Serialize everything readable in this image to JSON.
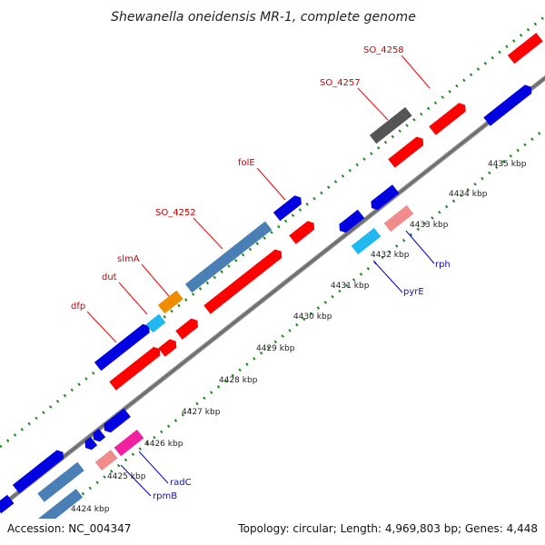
{
  "title": "Shewanella oneidensis MR-1, complete genome",
  "footer": {
    "accession": "Accession: NC_004347",
    "summary": "Topology: circular; Length: 4,969,803 bp; Genes: 4,448"
  },
  "ticks": [
    {
      "label": "4424 kbp"
    },
    {
      "label": "4425 kbp"
    },
    {
      "label": "4426 kbp"
    },
    {
      "label": "4427 kbp"
    },
    {
      "label": "4428 kbp"
    },
    {
      "label": "4429 kbp"
    },
    {
      "label": "4430 kbp"
    },
    {
      "label": "4431 kbp"
    },
    {
      "label": "4432 kbp"
    },
    {
      "label": "4433 kbp"
    },
    {
      "label": "4434 kbp"
    },
    {
      "label": "4435 kbp"
    }
  ],
  "gene_labels_top": [
    {
      "name": "dfp"
    },
    {
      "name": "dut"
    },
    {
      "name": "slmA"
    },
    {
      "name": "SO_4252"
    },
    {
      "name": "folE"
    },
    {
      "name": "SO_4257"
    },
    {
      "name": "SO_4258"
    }
  ],
  "gene_labels_bottom": [
    {
      "name": "rpmB"
    },
    {
      "name": "radC"
    },
    {
      "name": "pyrE"
    },
    {
      "name": "rph"
    }
  ],
  "colors": {
    "red": "#ff0000",
    "blue": "#0000e0",
    "steel": "#4a7fb5",
    "cyan": "#20b8f0",
    "orange": "#f08c00",
    "pink": "#f08c8c",
    "magenta": "#f020a0",
    "gray": "#555555",
    "dots": "#1a8a1a"
  }
}
